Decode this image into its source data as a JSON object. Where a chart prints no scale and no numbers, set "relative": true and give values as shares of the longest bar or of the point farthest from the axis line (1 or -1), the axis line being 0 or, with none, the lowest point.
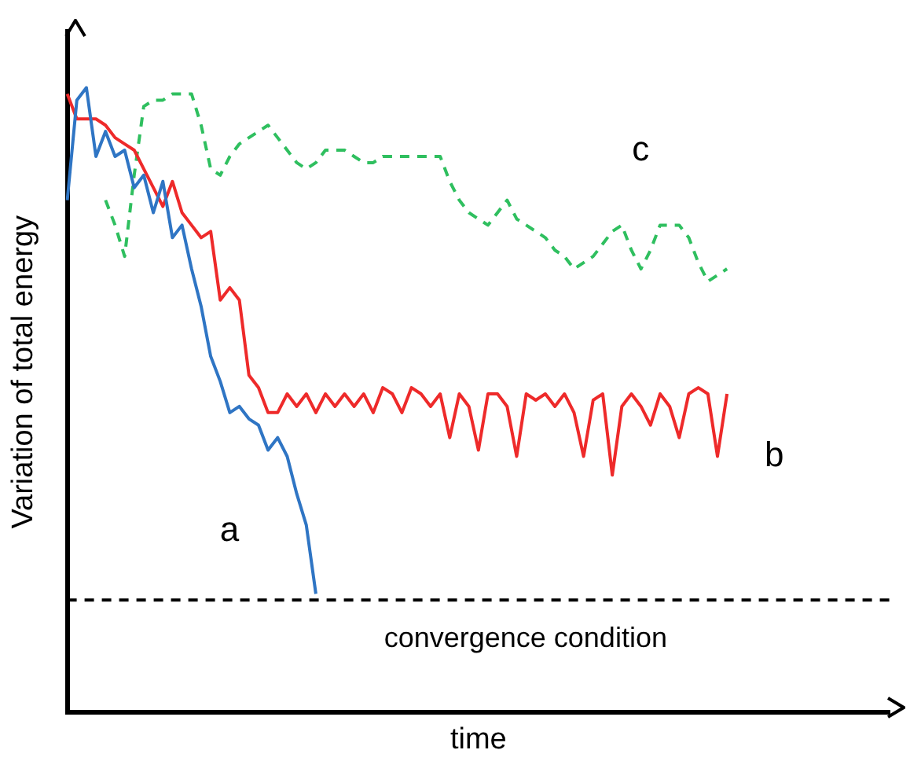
{
  "chart_data": {
    "type": "line",
    "relative": true,
    "xlabel": "time",
    "ylabel": "Variation of total energy",
    "grid": false,
    "legend": false,
    "marker": "none",
    "categories": [
      null,
      null,
      null,
      null,
      null,
      null,
      null,
      null,
      null,
      null,
      null,
      null,
      null,
      null,
      null,
      null,
      null,
      null,
      null,
      null,
      null,
      null,
      null,
      null,
      null,
      null,
      null,
      null,
      null,
      null,
      null,
      null,
      null,
      null,
      null,
      null,
      null,
      null,
      null,
      null,
      null,
      null,
      null,
      null,
      null,
      null,
      null,
      null,
      null,
      null,
      null,
      null,
      null,
      null,
      null,
      null,
      null,
      null,
      null,
      null,
      null,
      null,
      null,
      null,
      null,
      null,
      null,
      null,
      null,
      null,
      null,
      null,
      null,
      null,
      null,
      null,
      null,
      null,
      null,
      null,
      null,
      null,
      null,
      null,
      null,
      null,
      null
    ],
    "series": [
      {
        "name": "a",
        "color": "#2f75c4",
        "line_style": "solid",
        "values": [
          0.82,
          0.98,
          1,
          0.89,
          0.93,
          0.89,
          0.9,
          0.84,
          0.86,
          0.8,
          0.85,
          0.76,
          0.78,
          0.71,
          0.65,
          0.57,
          0.53,
          0.48,
          0.49,
          0.47,
          0.46,
          0.42,
          0.44,
          0.41,
          0.35,
          0.3,
          0.19,
          null,
          null,
          null,
          null,
          null,
          null,
          null,
          null,
          null,
          null,
          null,
          null,
          null,
          null,
          null,
          null,
          null,
          null,
          null,
          null,
          null,
          null,
          null,
          null,
          null,
          null,
          null,
          null,
          null,
          null,
          null,
          null,
          null,
          null,
          null,
          null,
          null,
          null,
          null,
          null,
          null,
          null,
          null,
          null,
          null,
          null,
          null,
          null,
          null,
          null,
          null,
          null,
          null,
          null,
          null,
          null,
          null,
          null,
          null,
          null
        ]
      },
      {
        "name": "b",
        "color": "#ee2a2a",
        "line_style": "solid",
        "values": [
          0.99,
          0.95,
          0.95,
          0.95,
          0.94,
          0.92,
          0.91,
          0.9,
          0.87,
          0.84,
          0.81,
          0.85,
          0.8,
          0.78,
          0.76,
          0.77,
          0.66,
          0.68,
          0.66,
          0.54,
          0.52,
          0.48,
          0.48,
          0.51,
          0.49,
          0.51,
          0.48,
          0.51,
          0.49,
          0.51,
          0.49,
          0.51,
          0.48,
          0.52,
          0.51,
          0.48,
          0.52,
          0.51,
          0.49,
          0.51,
          0.44,
          0.51,
          0.49,
          0.42,
          0.51,
          0.51,
          0.49,
          0.41,
          0.51,
          0.5,
          0.51,
          0.49,
          0.51,
          0.48,
          0.41,
          0.5,
          0.51,
          0.38,
          0.49,
          0.51,
          0.49,
          0.46,
          0.51,
          0.49,
          0.44,
          0.51,
          0.52,
          0.51,
          0.41,
          0.51,
          null,
          null,
          null,
          null,
          null,
          null,
          null,
          null,
          null,
          null,
          null,
          null,
          null,
          null,
          null,
          null,
          null
        ]
      },
      {
        "name": "c",
        "color": "#2fbf5f",
        "line_style": "dashed",
        "values": [
          null,
          null,
          null,
          null,
          0.82,
          0.78,
          0.73,
          0.86,
          0.97,
          0.98,
          0.98,
          0.99,
          0.99,
          0.99,
          0.94,
          0.87,
          0.86,
          0.89,
          0.91,
          0.92,
          0.93,
          0.94,
          0.92,
          0.9,
          0.88,
          0.87,
          0.88,
          0.9,
          0.9,
          0.9,
          0.89,
          0.88,
          0.88,
          0.89,
          0.89,
          0.89,
          0.89,
          0.89,
          0.89,
          0.89,
          0.85,
          0.82,
          0.8,
          0.79,
          0.78,
          0.8,
          0.82,
          0.79,
          0.78,
          0.77,
          0.76,
          0.74,
          0.73,
          0.71,
          0.72,
          0.73,
          0.75,
          0.77,
          0.78,
          0.74,
          0.71,
          0.74,
          0.78,
          0.78,
          0.78,
          0.76,
          0.72,
          0.69,
          0.7,
          0.71,
          null,
          null,
          null,
          null,
          null,
          null,
          null,
          null,
          null,
          null,
          null,
          null,
          null,
          null,
          null,
          null,
          null
        ]
      }
    ],
    "ref_lines": [
      {
        "axis": "y",
        "value": 0.18,
        "label": "convergence condition",
        "color": "#000000",
        "line_style": "dashed"
      }
    ]
  }
}
